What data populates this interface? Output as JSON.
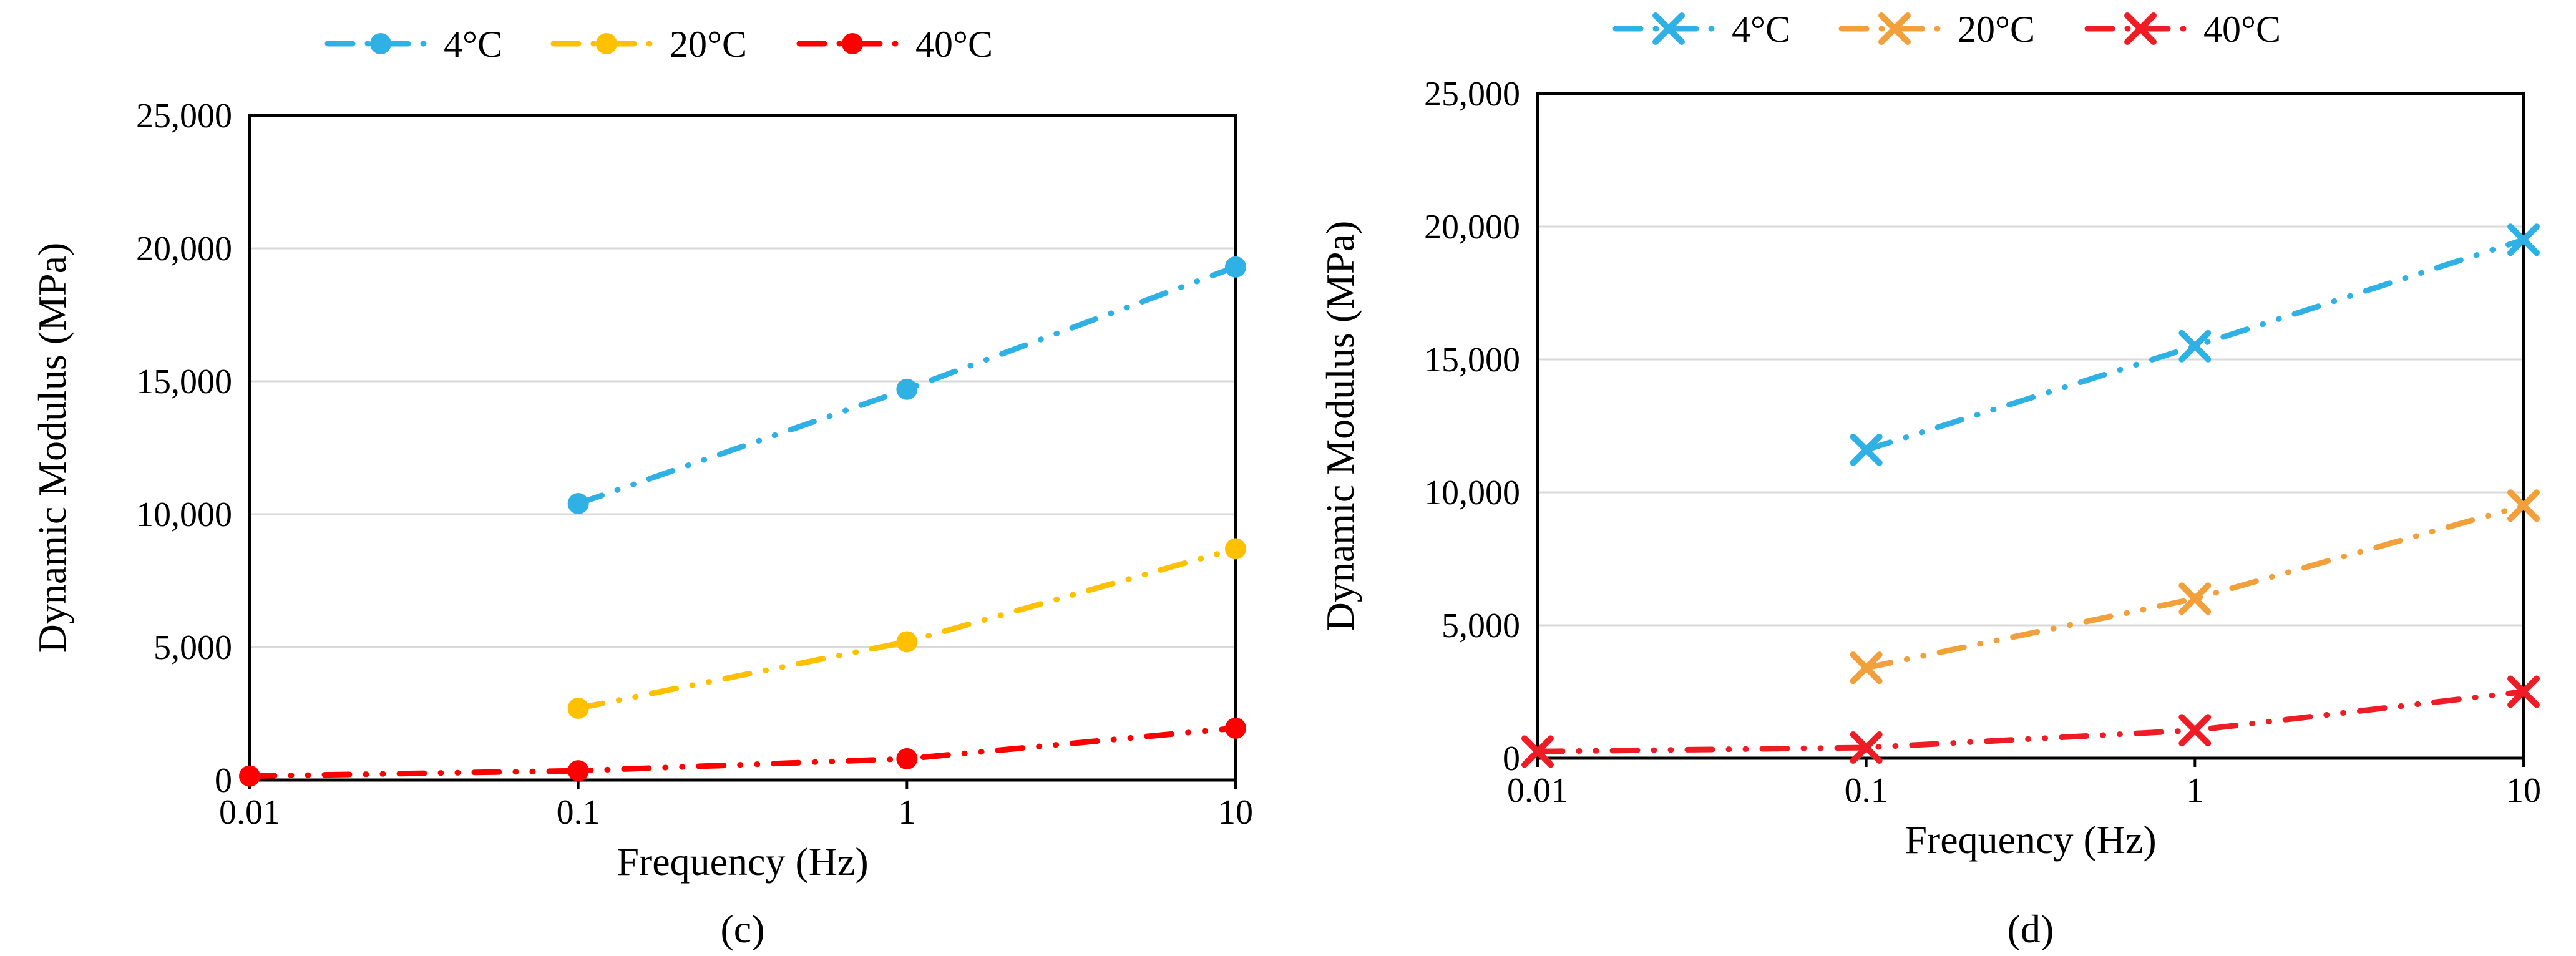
{
  "chart_data": [
    {
      "id": "c",
      "type": "line",
      "caption": "(c)",
      "xlabel": "Frequency (Hz)",
      "ylabel": "Dynamic Modulus (MPa)",
      "x_scale": "log",
      "xlim": [
        0.01,
        10
      ],
      "ylim": [
        0,
        25000
      ],
      "x_ticks": [
        0.01,
        0.1,
        1,
        10
      ],
      "x_tick_labels": [
        "0.01",
        "0.1",
        "1",
        "10"
      ],
      "y_ticks": [
        0,
        5000,
        10000,
        15000,
        20000,
        25000
      ],
      "y_tick_labels": [
        "0",
        "5,000",
        "10,000",
        "15,000",
        "20,000",
        "25,000"
      ],
      "grid": "horizontal",
      "grid_color": "#D9D9D9",
      "legend_position": "top",
      "marker": "circle",
      "line_style": "dash-dot-dot",
      "series": [
        {
          "name": "4°C",
          "color": "#2FB1E6",
          "x": [
            0.1,
            1,
            10
          ],
          "values": [
            10400,
            14700,
            19300
          ]
        },
        {
          "name": "20°C",
          "color": "#FFC000",
          "x": [
            0.1,
            1,
            10
          ],
          "values": [
            2700,
            5200,
            8700
          ]
        },
        {
          "name": "40°C",
          "color": "#FF0000",
          "x": [
            0.01,
            0.1,
            1,
            10
          ],
          "values": [
            150,
            350,
            800,
            1950
          ]
        }
      ]
    },
    {
      "id": "d",
      "type": "line",
      "caption": "(d)",
      "xlabel": "Frequency (Hz)",
      "ylabel": "Dynamic Modulus (MPa)",
      "x_scale": "log",
      "xlim": [
        0.01,
        10
      ],
      "ylim": [
        0,
        25000
      ],
      "x_ticks": [
        0.01,
        0.1,
        1,
        10
      ],
      "x_tick_labels": [
        "0.01",
        "0.1",
        "1",
        "10"
      ],
      "y_ticks": [
        0,
        5000,
        10000,
        15000,
        20000,
        25000
      ],
      "y_tick_labels": [
        "0",
        "5,000",
        "10,000",
        "15,000",
        "20,000",
        "25,000"
      ],
      "grid": "horizontal",
      "grid_color": "#D9D9D9",
      "legend_position": "top",
      "marker": "x",
      "line_style": "dash-dot-dot",
      "series": [
        {
          "name": "4°C",
          "color": "#2FB1E6",
          "x": [
            0.1,
            1,
            10
          ],
          "values": [
            11600,
            15500,
            19500
          ]
        },
        {
          "name": "20°C",
          "color": "#F2A03C",
          "x": [
            0.1,
            1,
            10
          ],
          "values": [
            3400,
            6000,
            9500
          ]
        },
        {
          "name": "40°C",
          "color": "#EE1C25",
          "x": [
            0.01,
            0.1,
            1,
            10
          ],
          "values": [
            250,
            400,
            1050,
            2500
          ]
        }
      ]
    }
  ]
}
